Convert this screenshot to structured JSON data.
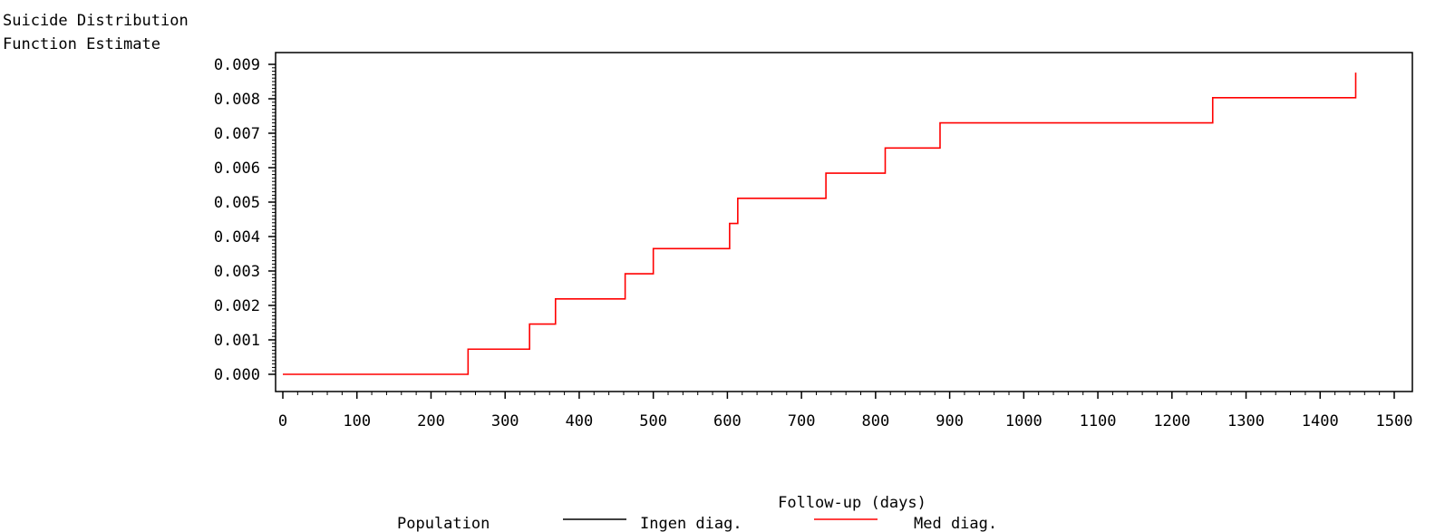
{
  "chart_data": {
    "type": "line",
    "title": "",
    "ylabel_lines": [
      "Suicide Distribution",
      "Function Estimate"
    ],
    "xlabel": "Follow-up (days)",
    "xlim": [
      0,
      1500
    ],
    "ylim": [
      0,
      0.009
    ],
    "x_ticks": [
      0,
      100,
      200,
      300,
      400,
      500,
      600,
      700,
      800,
      900,
      1000,
      1100,
      1200,
      1300,
      1400,
      1500
    ],
    "y_ticks": [
      0,
      0.001,
      0.002,
      0.003,
      0.004,
      0.005,
      0.006,
      0.007,
      0.008,
      0.009
    ],
    "y_tick_labels": [
      "0.000",
      "0.001",
      "0.002",
      "0.003",
      "0.004",
      "0.005",
      "0.006",
      "0.007",
      "0.008",
      "0.009"
    ],
    "grid": false,
    "step": true,
    "legend": {
      "title": "Population",
      "position": "bottom"
    },
    "series": [
      {
        "name": "Ingen diag.",
        "color": "#000000",
        "x": [],
        "y": []
      },
      {
        "name": "Med diag.",
        "color": "#ff0000",
        "x": [
          0,
          250,
          333,
          368,
          462,
          500,
          603,
          614,
          733,
          813,
          887,
          1255,
          1448
        ],
        "y": [
          0.0,
          0.00073,
          0.00146,
          0.00219,
          0.00292,
          0.00365,
          0.00438,
          0.00511,
          0.00584,
          0.00657,
          0.0073,
          0.00803,
          0.00876
        ]
      }
    ]
  }
}
